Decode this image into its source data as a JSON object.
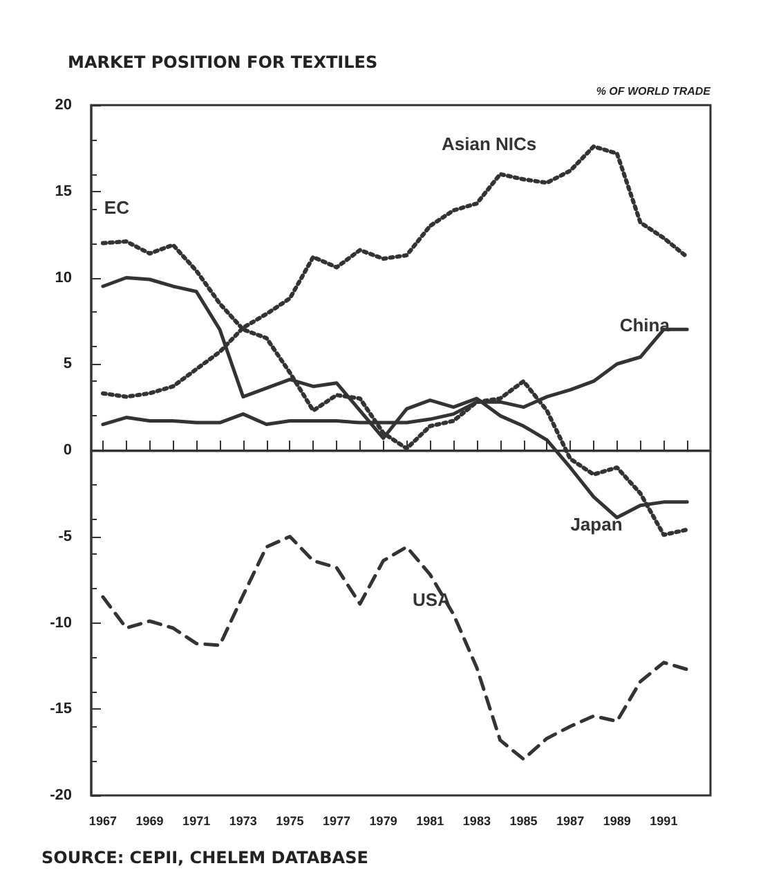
{
  "chart_data": {
    "type": "line",
    "title": "MARKET POSITION FOR TEXTILES",
    "ylabel": "% OF WORLD TRADE",
    "annotations": [
      "SOURCE: CEPII, CHELEM DATABASE"
    ],
    "x": [
      1967,
      1968,
      1969,
      1970,
      1971,
      1972,
      1973,
      1974,
      1975,
      1976,
      1977,
      1978,
      1979,
      1980,
      1981,
      1982,
      1983,
      1984,
      1985,
      1986,
      1987,
      1988,
      1989,
      1990,
      1991,
      1992
    ],
    "series": [
      {
        "name": "Asian NICs",
        "color": "#333333",
        "line_style": "dotted",
        "values": [
          3.3,
          3.1,
          3.3,
          3.7,
          4.7,
          5.7,
          7.1,
          7.9,
          8.8,
          11.2,
          10.6,
          11.6,
          11.1,
          11.3,
          13.0,
          13.9,
          14.3,
          16.0,
          15.7,
          15.5,
          16.2,
          17.6,
          17.2,
          13.2,
          12.3,
          11.2
        ]
      },
      {
        "name": "EC",
        "color": "#333333",
        "line_style": "dotted",
        "values": [
          12.0,
          12.1,
          11.4,
          11.9,
          10.4,
          8.5,
          7.0,
          6.5,
          4.5,
          2.3,
          3.2,
          3.0,
          1.0,
          0.1,
          1.4,
          1.7,
          2.8,
          3.0,
          4.0,
          2.3,
          -0.5,
          -1.4,
          -1.0,
          -2.5,
          -4.9,
          -4.6
        ]
      },
      {
        "name": "Japan",
        "color": "#333333",
        "line_style": "solid",
        "values": [
          9.5,
          10.0,
          9.9,
          9.5,
          9.2,
          7.0,
          3.1,
          3.6,
          4.1,
          3.7,
          3.9,
          2.3,
          0.7,
          2.4,
          2.9,
          2.5,
          3.0,
          2.0,
          1.4,
          0.6,
          -1.0,
          -2.7,
          -3.9,
          -3.2,
          -3.0,
          -3.0
        ]
      },
      {
        "name": "China",
        "color": "#333333",
        "line_style": "solid",
        "values": [
          1.5,
          1.9,
          1.7,
          1.7,
          1.6,
          1.6,
          2.1,
          1.5,
          1.7,
          1.7,
          1.7,
          1.6,
          1.6,
          1.6,
          1.8,
          2.1,
          2.8,
          2.8,
          2.5,
          3.1,
          3.5,
          4.0,
          5.0,
          5.4,
          7.0,
          7.0
        ]
      },
      {
        "name": "USA",
        "color": "#333333",
        "line_style": "dashed",
        "values": [
          -8.5,
          -10.3,
          -9.9,
          -10.3,
          -11.2,
          -11.3,
          -8.4,
          -5.6,
          -5.0,
          -6.4,
          -6.8,
          -8.9,
          -6.4,
          -5.6,
          -7.2,
          -9.5,
          -12.6,
          -16.8,
          -17.9,
          -16.7,
          -16.0,
          -15.4,
          -15.7,
          -13.4,
          -12.3,
          -12.7
        ]
      }
    ],
    "xlim": [
      1966.5,
      1993
    ],
    "xticks": [
      1967,
      {
        "value": 1968,
        "label": null
      },
      1969,
      {
        "value": 1970,
        "label": null
      },
      1971,
      {
        "value": 1972,
        "label": null
      },
      1973,
      {
        "value": 1974,
        "label": null
      },
      1975,
      {
        "value": 1976,
        "label": null
      },
      1977,
      {
        "value": 1978,
        "label": null
      },
      1979,
      {
        "value": 1980,
        "label": null
      },
      1981,
      {
        "value": 1982,
        "label": null
      },
      1983,
      {
        "value": 1984,
        "label": null
      },
      1985,
      {
        "value": 1986,
        "label": null
      },
      1987,
      {
        "value": 1988,
        "label": null
      },
      1989,
      {
        "value": 1990,
        "label": null
      },
      1991,
      {
        "value": 1992,
        "label": null
      }
    ],
    "ylim": [
      -20,
      20
    ],
    "yticks": [
      -20,
      -15,
      -10,
      -5,
      0,
      5,
      10,
      15,
      20
    ],
    "ref_lines": [
      {
        "axis": "y",
        "value": 0,
        "color": "#333333"
      }
    ],
    "grid": false,
    "legend": false,
    "marker": "none"
  }
}
